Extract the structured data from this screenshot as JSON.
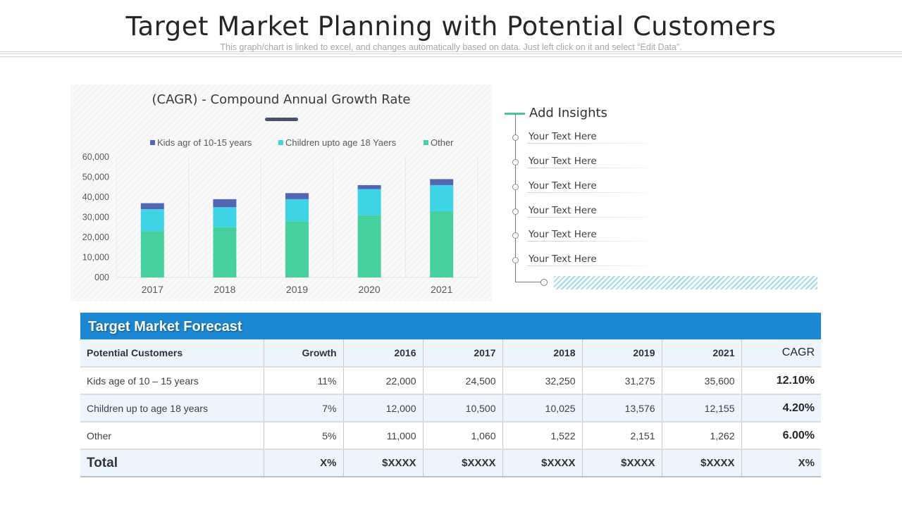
{
  "page": {
    "title": "Target Market Planning with Potential Customers",
    "subtitle": "This graph/chart is linked to excel, and changes automatically based on data. Just left click on it and select “Edit Data”."
  },
  "chart_data": {
    "type": "bar",
    "stacked": true,
    "title": "(CAGR)  - Compound Annual Growth Rate",
    "categories": [
      "2017",
      "2018",
      "2019",
      "2020",
      "2021"
    ],
    "series": [
      {
        "name": "Other",
        "color": "#46d09d",
        "values": [
          23000,
          25000,
          28000,
          31000,
          33000
        ]
      },
      {
        "name": "Children upto age 18 Yaers",
        "color": "#3ed4e6",
        "values": [
          11000,
          10000,
          11000,
          13000,
          13000
        ]
      },
      {
        "name": "Kids agr of 10-15 years",
        "color": "#5266b3",
        "values": [
          3000,
          4000,
          3000,
          2000,
          3000
        ]
      }
    ],
    "legend_order": [
      "Kids agr of 10-15 years",
      "Children upto age 18 Yaers",
      "Other"
    ],
    "ylim": [
      0,
      60000
    ],
    "yticks": [
      "000",
      "10,000",
      "20,000",
      "30,000",
      "40,000",
      "50,000",
      "60,000"
    ],
    "xlabel": "",
    "ylabel": "",
    "grid": true,
    "legend_position": "top"
  },
  "insights": {
    "title": "Add Insights",
    "items": [
      "Your Text Here",
      "Your Text Here",
      "Your Text Here",
      "Your Text Here",
      "Your Text Here",
      "Your Text Here"
    ]
  },
  "forecast": {
    "title": "Target Market Forecast",
    "columns": [
      "Potential Customers",
      "Growth",
      "2016",
      "2017",
      "2018",
      "2019",
      "2021",
      "CAGR"
    ],
    "rows": [
      [
        "Kids age of 10 – 15 years",
        "11%",
        "22,000",
        "24,500",
        "32,250",
        "31,275",
        "35,600",
        "12.10%"
      ],
      [
        "Children up to age 18 years",
        "7%",
        "12,000",
        "10,500",
        "10,025",
        "13,576",
        "12,155",
        "4.20%"
      ],
      [
        "Other",
        "5%",
        "11,000",
        "1,060",
        "1,522",
        "2,151",
        "1,262",
        "6.00%"
      ]
    ],
    "total": [
      "Total",
      "X%",
      "$XXXX",
      "$XXXX",
      "$XXXX",
      "$XXXX",
      "$XXXX",
      "X%"
    ]
  }
}
